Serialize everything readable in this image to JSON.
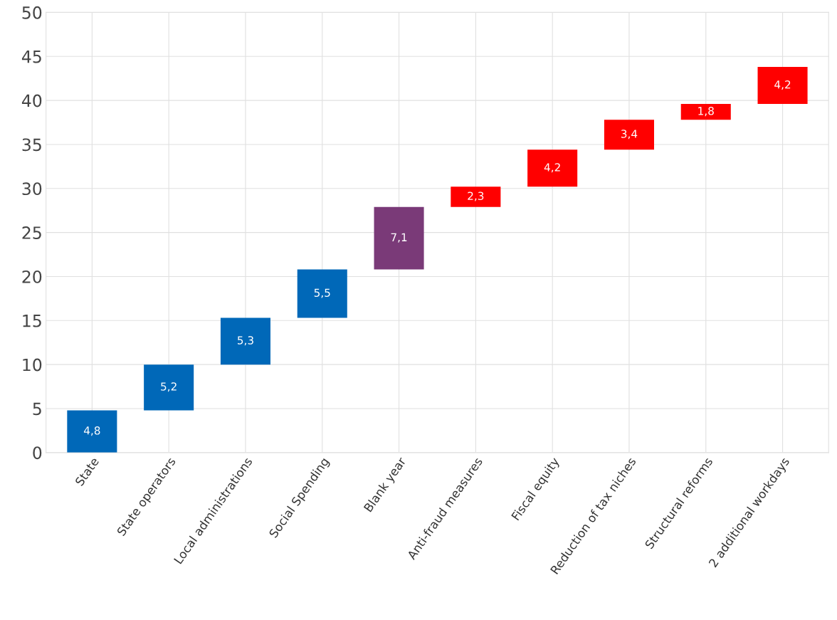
{
  "chart_data": {
    "type": "bar",
    "categories": [
      "State",
      "State operators",
      "Local administrations",
      "Social Spending",
      "Blank year",
      "Anti-fraud measures",
      "Fiscal equity",
      "Reduction of tax niches",
      "Structural reforms",
      "2 additional workdays"
    ],
    "values": [
      4.8,
      5.2,
      5.3,
      5.5,
      7.1,
      2.3,
      4.2,
      3.4,
      1.8,
      4.2
    ],
    "base": [
      0,
      4.8,
      10.0,
      15.3,
      20.8,
      27.9,
      30.2,
      34.4,
      37.8,
      39.6
    ],
    "value_labels": [
      "4,8",
      "5,2",
      "5,3",
      "5,5",
      "7,1",
      "2,3",
      "4,2",
      "3,4",
      "1,8",
      "4,2"
    ],
    "colors": [
      "#0068b8",
      "#0068b8",
      "#0068b8",
      "#0068b8",
      "#7a3a78",
      "#ff0000",
      "#ff0000",
      "#ff0000",
      "#ff0000",
      "#ff0000"
    ],
    "ylim": [
      0,
      50
    ],
    "yticks": [
      0,
      5,
      10,
      15,
      20,
      25,
      30,
      35,
      40,
      45,
      50
    ],
    "grid": true
  }
}
